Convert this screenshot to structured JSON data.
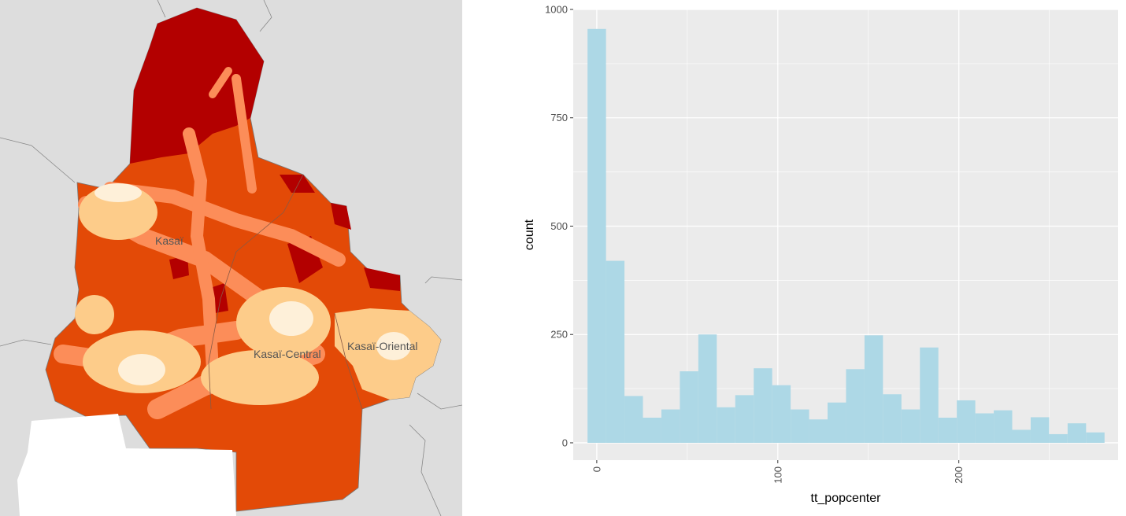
{
  "map": {
    "region_labels": [
      "Kasaï",
      "Kasaï-Central",
      "Kasaï-Oriental"
    ],
    "colors": {
      "background": "#dddddd",
      "far": "#b30000",
      "high": "#e34a07",
      "mid": "#fc8d59",
      "low": "#fdcc8a",
      "near": "#fef0d9"
    }
  },
  "chart_data": {
    "type": "bar",
    "title": "",
    "xlabel": "tt_popcenter",
    "ylabel": "count",
    "fill": "#add8e6",
    "panel_background": "#ebebeb",
    "grid": true,
    "xlim": [
      -13,
      288
    ],
    "ylim": [
      -40,
      1000
    ],
    "xticks": [
      0,
      100,
      200
    ],
    "yticks": [
      0,
      250,
      500,
      750,
      1000
    ],
    "bin_width": 10.2,
    "bins": [
      {
        "x": 0,
        "count": 955
      },
      {
        "x": 10.2,
        "count": 420
      },
      {
        "x": 20.4,
        "count": 108
      },
      {
        "x": 30.6,
        "count": 58
      },
      {
        "x": 40.8,
        "count": 77
      },
      {
        "x": 51,
        "count": 165
      },
      {
        "x": 61.2,
        "count": 250
      },
      {
        "x": 71.4,
        "count": 82
      },
      {
        "x": 81.6,
        "count": 110
      },
      {
        "x": 91.8,
        "count": 172
      },
      {
        "x": 102,
        "count": 133
      },
      {
        "x": 112.2,
        "count": 77
      },
      {
        "x": 122.4,
        "count": 54
      },
      {
        "x": 132.6,
        "count": 93
      },
      {
        "x": 142.8,
        "count": 170
      },
      {
        "x": 153,
        "count": 248
      },
      {
        "x": 163.2,
        "count": 112
      },
      {
        "x": 173.4,
        "count": 77
      },
      {
        "x": 183.6,
        "count": 220
      },
      {
        "x": 193.8,
        "count": 58
      },
      {
        "x": 204,
        "count": 98
      },
      {
        "x": 214.2,
        "count": 68
      },
      {
        "x": 224.4,
        "count": 75
      },
      {
        "x": 234.6,
        "count": 30
      },
      {
        "x": 244.8,
        "count": 59
      },
      {
        "x": 255,
        "count": 20
      },
      {
        "x": 265.2,
        "count": 45
      },
      {
        "x": 275.4,
        "count": 24
      }
    ]
  }
}
